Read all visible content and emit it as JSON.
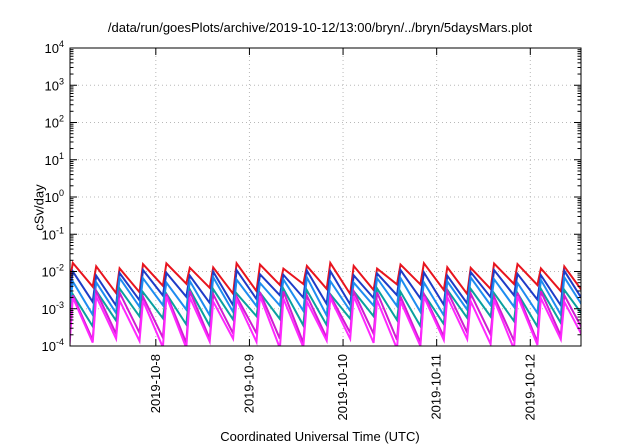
{
  "chart_data": {
    "type": "line",
    "title": "/data/run/goesPlots/archive/2019-10-12/13:00/bryn/../bryn/5daysMars.plot",
    "xlabel": "Coordinated Universal Time (UTC)",
    "ylabel": "cSv/day",
    "x_axis": {
      "type": "time",
      "range": [
        "2019-10-07T02:00",
        "2019-10-12T13:00"
      ],
      "ticks": [
        "2019-10-8",
        "2019-10-9",
        "2019-10-10",
        "2019-10-11",
        "2019-10-12"
      ]
    },
    "y_axis": {
      "scale": "log",
      "range": [
        0.0001,
        10000
      ],
      "ticks": [
        {
          "base": "10",
          "exp": "4"
        },
        {
          "base": "10",
          "exp": "3"
        },
        {
          "base": "10",
          "exp": "2"
        },
        {
          "base": "10",
          "exp": "1"
        },
        {
          "base": "10",
          "exp": "0"
        },
        {
          "base": "10",
          "exp": "-1"
        },
        {
          "base": "10",
          "exp": "-2"
        },
        {
          "base": "10",
          "exp": "-3"
        },
        {
          "base": "10",
          "exp": "-4"
        }
      ]
    },
    "grid": true,
    "sawtooth_period_hours": 6,
    "series": [
      {
        "color": "#e8141e",
        "peak": 0.017,
        "trough": 0.0045
      },
      {
        "color": "#1e3cc8",
        "peak": 0.011,
        "trough": 0.0022
      },
      {
        "color": "#1e8cf0",
        "peak": 0.007,
        "trough": 0.0012
      },
      {
        "color": "#0aa0a0",
        "peak": 0.0035,
        "trough": 0.0006
      },
      {
        "color": "#d01ed0",
        "peak": 0.003,
        "trough": 0.00022
      },
      {
        "color": "#ff28ff",
        "peak": 0.0022,
        "trough": 0.00015
      }
    ]
  }
}
